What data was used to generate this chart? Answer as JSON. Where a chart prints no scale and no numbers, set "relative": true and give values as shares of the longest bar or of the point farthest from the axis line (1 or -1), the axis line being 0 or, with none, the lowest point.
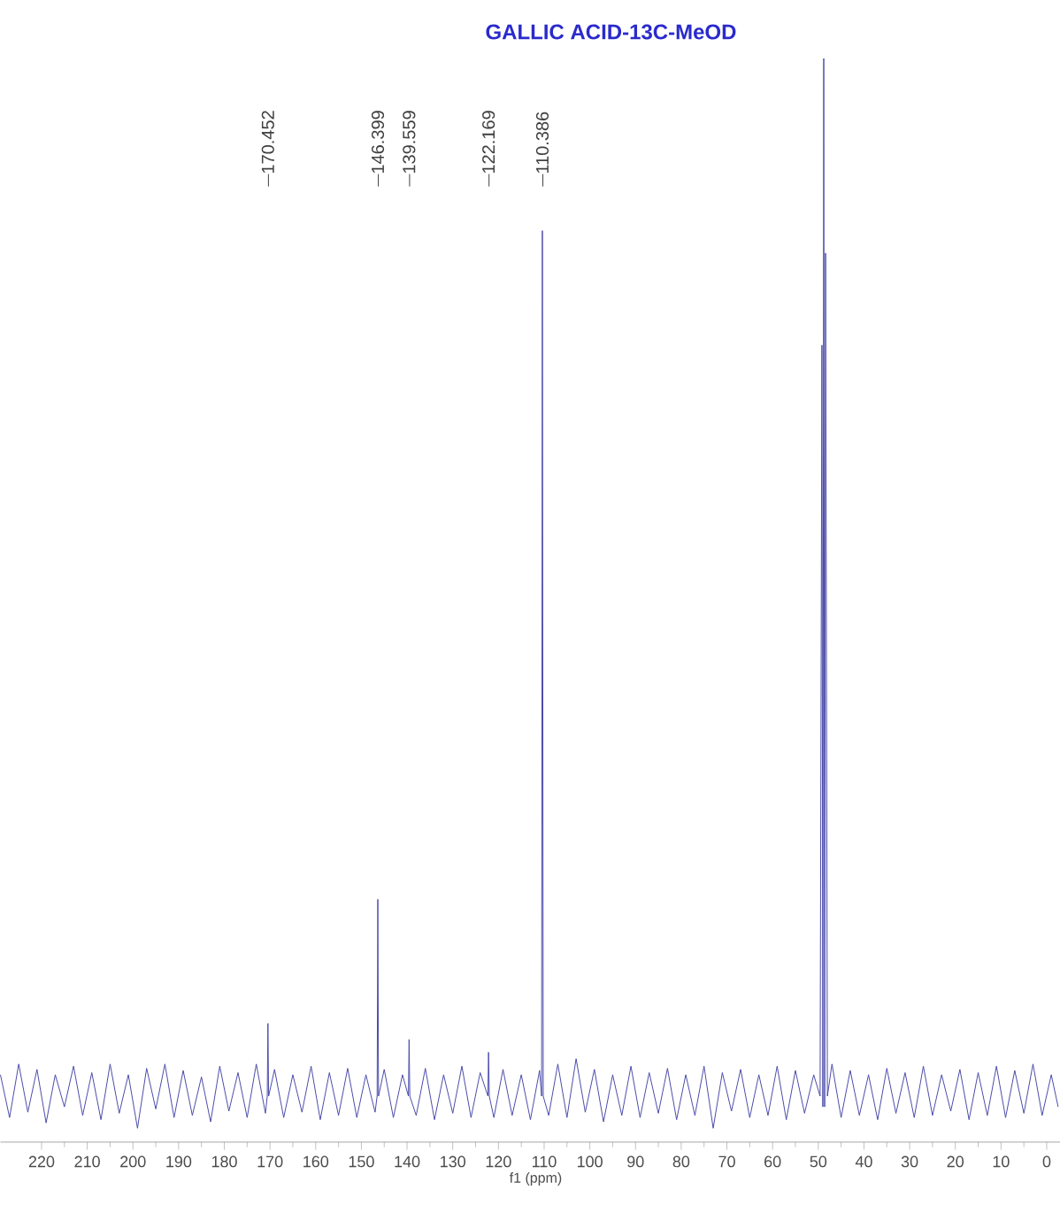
{
  "chart_data": {
    "type": "line",
    "title": "GALLIC ACID-13C-MeOD",
    "xlabel": "f1 (ppm)",
    "relative": true,
    "xlim": [
      229,
      -3
    ],
    "xticks": [
      220,
      210,
      200,
      190,
      180,
      170,
      160,
      150,
      140,
      130,
      120,
      110,
      100,
      90,
      80,
      70,
      60,
      50,
      40,
      30,
      20,
      10,
      0
    ],
    "annotations": [
      "170.452",
      "146.399",
      "139.559",
      "122.169",
      "110.386"
    ],
    "series": [
      {
        "color": "#4b4baa",
        "x": [
          229,
          227,
          225,
          223,
          221,
          219,
          217,
          215,
          213,
          211,
          209,
          207,
          205,
          203,
          201,
          199,
          197,
          195,
          193,
          191,
          189,
          187,
          185,
          183,
          181,
          179,
          177,
          175,
          173,
          171,
          170.6,
          170.452,
          170.3,
          169,
          167,
          165,
          163,
          161,
          159,
          157,
          155,
          153,
          151,
          149,
          147,
          146.55,
          146.399,
          146.25,
          145,
          143,
          141,
          139.7,
          139.559,
          139.4,
          138,
          136,
          134,
          132,
          130,
          128,
          126,
          124,
          122.3,
          122.169,
          122.0,
          121,
          119,
          117,
          115,
          113,
          111,
          110.55,
          110.386,
          110.2,
          109,
          107,
          105,
          103,
          101,
          99,
          97,
          95,
          93,
          91,
          89,
          87,
          85,
          83,
          81,
          79,
          77,
          75,
          73,
          71,
          69,
          67,
          65,
          63,
          61,
          59,
          57,
          55,
          53,
          51,
          49.6,
          49.2,
          49.0,
          48.8,
          48.6,
          48.4,
          48.0,
          47,
          45,
          43,
          41,
          39,
          37,
          35,
          33,
          31,
          29,
          27,
          25,
          23,
          21,
          19,
          17,
          15,
          13,
          11,
          9,
          7,
          5,
          3,
          1,
          -1,
          -2.5
        ],
        "values": [
          0.05,
          0.01,
          0.06,
          0.015,
          0.055,
          0.005,
          0.05,
          0.02,
          0.058,
          0.012,
          0.052,
          0.008,
          0.06,
          0.014,
          0.05,
          0.0,
          0.056,
          0.018,
          0.06,
          0.01,
          0.054,
          0.012,
          0.048,
          0.006,
          0.058,
          0.016,
          0.052,
          0.01,
          0.06,
          0.014,
          0.03,
          0.098,
          0.03,
          0.055,
          0.01,
          0.05,
          0.015,
          0.058,
          0.008,
          0.052,
          0.012,
          0.056,
          0.01,
          0.05,
          0.015,
          0.03,
          0.214,
          0.03,
          0.055,
          0.01,
          0.05,
          0.03,
          0.083,
          0.03,
          0.012,
          0.056,
          0.008,
          0.05,
          0.014,
          0.058,
          0.01,
          0.052,
          0.03,
          0.071,
          0.03,
          0.01,
          0.055,
          0.012,
          0.05,
          0.008,
          0.054,
          0.03,
          0.839,
          0.03,
          0.012,
          0.06,
          0.01,
          0.065,
          0.015,
          0.055,
          0.006,
          0.05,
          0.012,
          0.058,
          0.01,
          0.052,
          0.014,
          0.056,
          0.008,
          0.05,
          0.012,
          0.058,
          0.0,
          0.052,
          0.016,
          0.055,
          0.01,
          0.05,
          0.012,
          0.058,
          0.008,
          0.054,
          0.014,
          0.05,
          0.03,
          0.732,
          0.02,
          1.0,
          0.02,
          0.818,
          0.03,
          0.06,
          0.01,
          0.054,
          0.012,
          0.05,
          0.008,
          0.056,
          0.014,
          0.052,
          0.01,
          0.058,
          0.012,
          0.05,
          0.016,
          0.055,
          0.008,
          0.052,
          0.012,
          0.058,
          0.01,
          0.054,
          0.014,
          0.06,
          0.012,
          0.05,
          0.02
        ]
      }
    ]
  }
}
